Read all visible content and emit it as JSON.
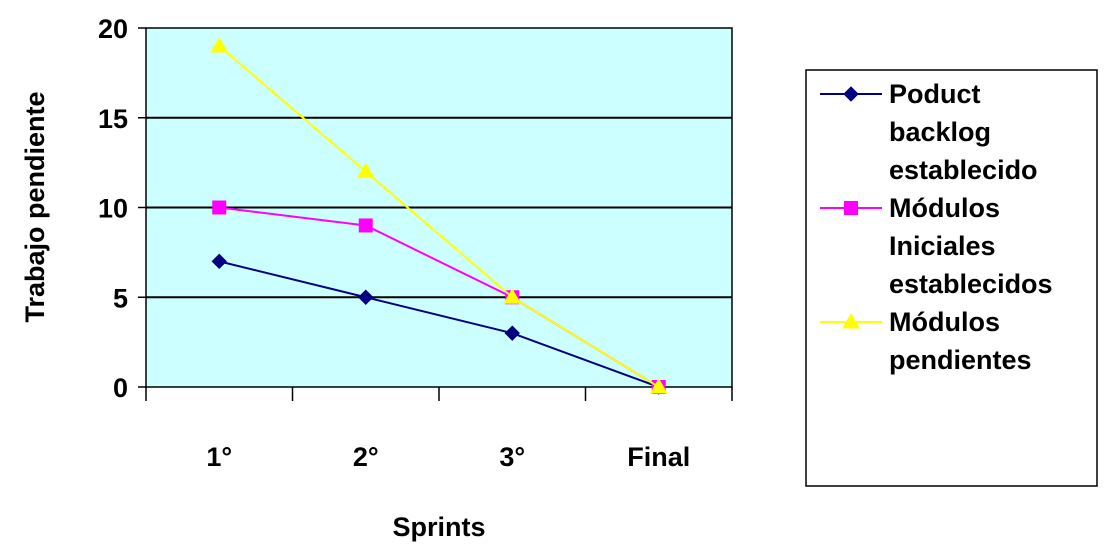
{
  "chart_data": {
    "type": "line",
    "title": "",
    "xlabel": "Sprints",
    "ylabel": "Trabajo pendiente",
    "categories": [
      "1°",
      "2°",
      "3°",
      "Final"
    ],
    "ylim": [
      0,
      20
    ],
    "yticks": [
      "0",
      "5",
      "10",
      "15",
      "20"
    ],
    "grid": true,
    "plot_background": "#ccffff",
    "legend_position": "right",
    "series": [
      {
        "name": "Poduct backlog establecido",
        "legend_lines": [
          "Poduct",
          "backlog",
          "establecido"
        ],
        "values": [
          7,
          5,
          3,
          0
        ],
        "color": "#000080",
        "marker": "diamond"
      },
      {
        "name": "Módulos Iniciales establecidos",
        "legend_lines": [
          "Módulos",
          "Iniciales",
          "establecidos"
        ],
        "values": [
          10,
          9,
          5,
          0
        ],
        "color": "#ff00ff",
        "marker": "square"
      },
      {
        "name": "Módulos pendientes",
        "legend_lines": [
          "Módulos",
          "pendientes"
        ],
        "values": [
          19,
          12,
          5,
          0
        ],
        "color": "#ffff00",
        "marker": "triangle"
      }
    ]
  }
}
